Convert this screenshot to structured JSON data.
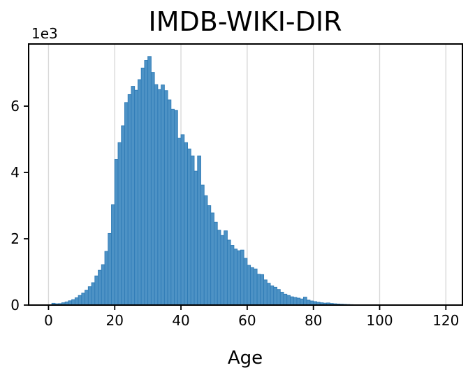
{
  "figure": {
    "title": "IMDB-WIKI-DIR",
    "xlabel": "Age",
    "y_offset_text": "1e3"
  },
  "chart_data": {
    "type": "bar",
    "subtype": "histogram",
    "title": "IMDB-WIKI-DIR",
    "xlabel": "Age",
    "ylabel": "",
    "y_offset_text": "1e3",
    "bin_width": 1,
    "x_start": 0,
    "x_ticks": [
      0,
      20,
      40,
      60,
      80,
      100,
      120
    ],
    "y_ticks": [
      0,
      2,
      4,
      6
    ],
    "y_tick_multiplier": 1000,
    "xlim": [
      -6,
      125
    ],
    "ylim": [
      0,
      7875
    ],
    "grid": "vertical-only",
    "legend": "none",
    "values": [
      10,
      55,
      40,
      45,
      70,
      95,
      130,
      165,
      220,
      290,
      360,
      450,
      555,
      675,
      880,
      1050,
      1220,
      1620,
      2160,
      3030,
      4390,
      4900,
      5410,
      6110,
      6350,
      6600,
      6480,
      6800,
      7150,
      7380,
      7500,
      7020,
      6650,
      6500,
      6640,
      6470,
      6190,
      5910,
      5870,
      5030,
      5140,
      4900,
      4710,
      4500,
      4040,
      4500,
      3620,
      3300,
      3000,
      2780,
      2500,
      2260,
      2100,
      2240,
      1960,
      1800,
      1690,
      1640,
      1660,
      1410,
      1200,
      1130,
      1090,
      930,
      920,
      760,
      660,
      580,
      540,
      470,
      390,
      330,
      290,
      250,
      230,
      210,
      185,
      240,
      150,
      125,
      105,
      85,
      70,
      60,
      65,
      50,
      40,
      33,
      27,
      22,
      18,
      14,
      10,
      7,
      5,
      3,
      2,
      1,
      1,
      1,
      0,
      0,
      0,
      0,
      0,
      0,
      0,
      0,
      0,
      0,
      0,
      0,
      0,
      0,
      0,
      0,
      0,
      0,
      0,
      0
    ],
    "style": {
      "bar_fill": "#4D92C5",
      "bar_edge": "#2F7BB6",
      "grid_color": "#D8D8D8",
      "spine_color": "#000000",
      "text_color": "#000000",
      "background": "#FFFFFF"
    }
  }
}
